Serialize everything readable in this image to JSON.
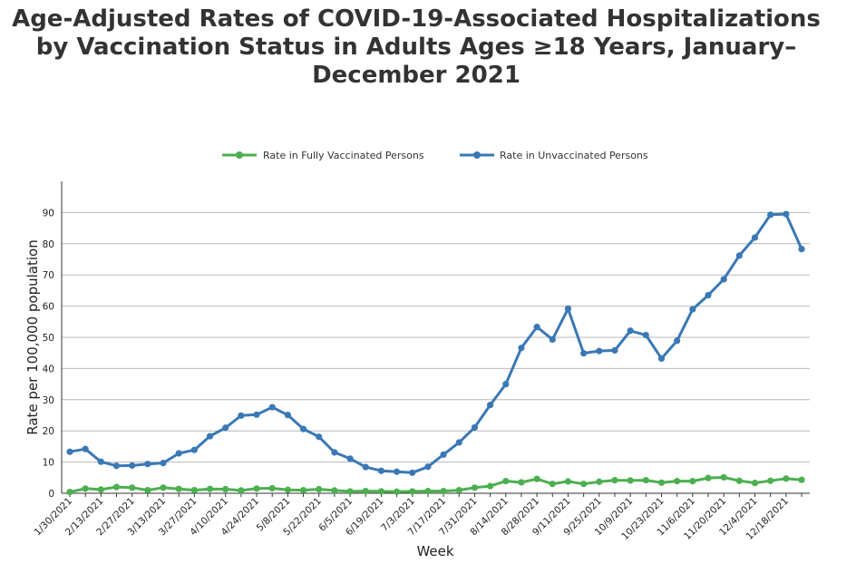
{
  "chart_data": {
    "type": "line",
    "title": "Age-Adjusted Rates of COVID-19-Associated Hospitalizations by Vaccination Status in Adults Ages ≥18 Years, January–December 2021",
    "xlabel": "Week",
    "ylabel": "Rate per 100,000 population",
    "ylim": [
      0,
      100
    ],
    "yticks": [
      0,
      10,
      20,
      30,
      40,
      50,
      60,
      70,
      80,
      90
    ],
    "grid": true,
    "legend_position": "top",
    "x": [
      "1/30/2021",
      "2/6/2021",
      "2/13/2021",
      "2/20/2021",
      "2/27/2021",
      "3/6/2021",
      "3/13/2021",
      "3/20/2021",
      "3/27/2021",
      "4/3/2021",
      "4/10/2021",
      "4/17/2021",
      "4/24/2021",
      "5/1/2021",
      "5/8/2021",
      "5/15/2021",
      "5/22/2021",
      "5/29/2021",
      "6/5/2021",
      "6/12/2021",
      "6/19/2021",
      "6/26/2021",
      "7/3/2021",
      "7/10/2021",
      "7/17/2021",
      "7/24/2021",
      "7/31/2021",
      "8/7/2021",
      "8/14/2021",
      "8/21/2021",
      "8/28/2021",
      "9/4/2021",
      "9/11/2021",
      "9/18/2021",
      "9/25/2021",
      "10/2/2021",
      "10/9/2021",
      "10/16/2021",
      "10/23/2021",
      "10/30/2021",
      "11/6/2021",
      "11/13/2021",
      "11/20/2021",
      "11/27/2021",
      "12/4/2021",
      "12/11/2021",
      "12/18/2021",
      "12/25/2021"
    ],
    "xtick_labels": [
      "1/30/2021",
      "2/13/2021",
      "2/27/2021",
      "3/13/2021",
      "3/27/2021",
      "4/10/2021",
      "4/24/2021",
      "5/8/2021",
      "5/22/2021",
      "6/5/2021",
      "6/19/2021",
      "7/3/2021",
      "7/17/2021",
      "7/31/2021",
      "8/14/2021",
      "8/28/2021",
      "9/11/2021",
      "9/25/2021",
      "10/9/2021",
      "10/23/2021",
      "11/6/2021",
      "11/20/2021",
      "12/4/2021",
      "12/18/2021"
    ],
    "series": [
      {
        "name": "Rate in Fully Vaccinated Persons",
        "color": "#4caf50",
        "values": [
          0.4,
          1.5,
          1.2,
          2.0,
          1.8,
          1.0,
          1.8,
          1.4,
          1.0,
          1.4,
          1.3,
          0.9,
          1.5,
          1.6,
          1.1,
          1.0,
          1.3,
          0.9,
          0.6,
          0.7,
          0.6,
          0.5,
          0.6,
          0.7,
          0.7,
          1.0,
          1.8,
          2.3,
          3.9,
          3.5,
          4.6,
          3.0,
          3.8,
          3.0,
          3.7,
          4.2,
          4.1,
          4.2,
          3.4,
          3.9,
          3.9,
          4.9,
          5.1,
          4.0,
          3.3,
          4.0,
          4.7,
          4.3
        ]
      },
      {
        "name": "Rate in Unvaccinated Persons",
        "color": "#3a78b5",
        "values": [
          13.3,
          14.2,
          10.1,
          8.8,
          8.9,
          9.4,
          9.7,
          12.8,
          13.9,
          18.3,
          21.0,
          24.9,
          25.2,
          27.6,
          25.1,
          20.6,
          18.1,
          13.1,
          11.1,
          8.4,
          7.2,
          6.9,
          6.6,
          8.5,
          12.4,
          16.3,
          21.1,
          28.3,
          35.0,
          46.6,
          53.3,
          49.3,
          59.2,
          44.9,
          45.6,
          45.8,
          52.1,
          50.7,
          43.2,
          48.9,
          59.0,
          63.5,
          68.6,
          76.2,
          82.0,
          89.3,
          89.5,
          78.3
        ]
      }
    ]
  }
}
